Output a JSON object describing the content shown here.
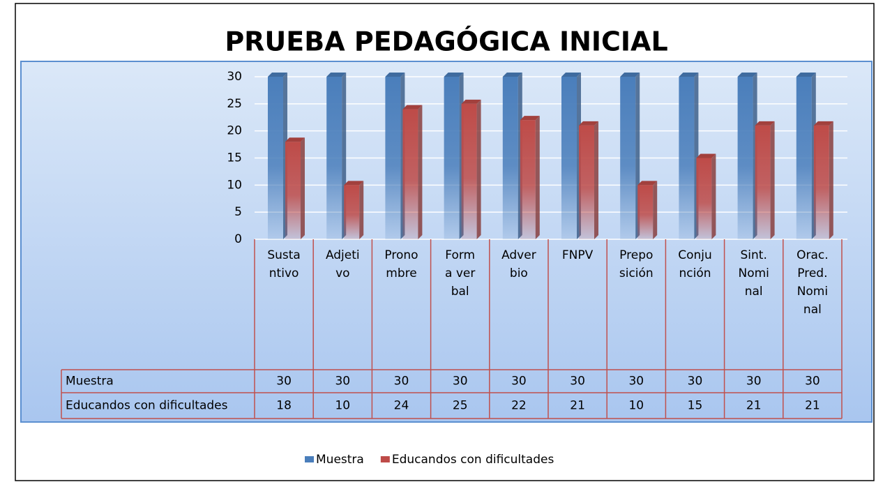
{
  "chart_data": {
    "type": "bar3d",
    "title": "PRUEBA PEDAGÓGICA INICIAL",
    "categories": [
      "Sustantivo",
      "Adjetivo",
      "Pronombre",
      "Forma verbal",
      "Adverbio",
      "FNPV",
      "Preposición",
      "Conjunción",
      "Sint. Nominal",
      "Orac. Pred. Nominal"
    ],
    "series": [
      {
        "name": "Muestra",
        "color": "#4a7ebb",
        "values": [
          30,
          30,
          30,
          30,
          30,
          30,
          30,
          30,
          30,
          30
        ]
      },
      {
        "name": "Educandos con dificultades",
        "color": "#be4b48",
        "values": [
          18,
          10,
          24,
          25,
          22,
          21,
          10,
          15,
          21,
          21
        ]
      }
    ],
    "ylim": [
      0,
      30
    ],
    "yticks": [
      0,
      5,
      10,
      15,
      20,
      25,
      30
    ],
    "grid": true,
    "legend": "bottom",
    "data_table": true
  }
}
